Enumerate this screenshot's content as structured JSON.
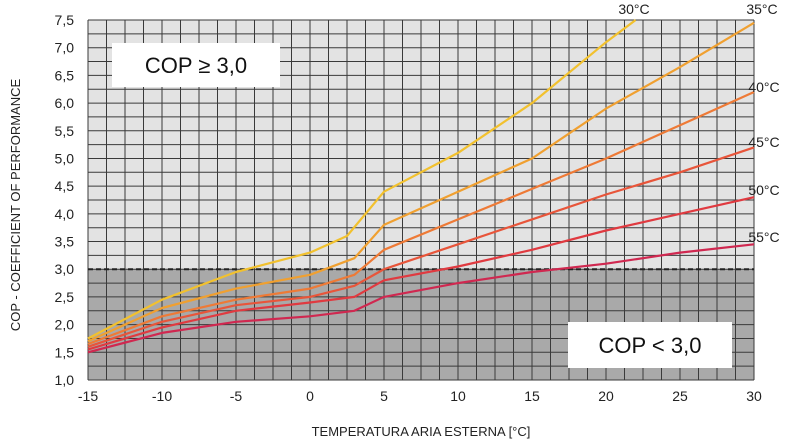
{
  "chart_data": {
    "type": "line",
    "xlabel": "TEMPERATURA ARIA ESTERNA [°C]",
    "ylabel": "COP - COEFFICIENT OF PERFORMANCE",
    "xlim": [
      -15,
      30
    ],
    "ylim": [
      1.0,
      7.5
    ],
    "x_ticks": [
      "-15",
      "-10",
      "-5",
      "0",
      "5",
      "10",
      "15",
      "20",
      "25",
      "30"
    ],
    "y_ticks": [
      "1,0",
      "1,5",
      "2,0",
      "2,5",
      "3,0",
      "3,5",
      "4,0",
      "4,5",
      "5,0",
      "5,5",
      "6,0",
      "6,5",
      "7,0",
      "7,5"
    ],
    "threshold": 3.0,
    "annotations": {
      "upper_region": "COP ≥  3,0",
      "lower_region": "COP <  3,0"
    },
    "series": [
      {
        "name": "30°C",
        "color": "#f2c12e",
        "x": [
          -15,
          -10,
          -5,
          0,
          2.5,
          5,
          10,
          15,
          20,
          22
        ],
        "y": [
          1.75,
          2.45,
          2.95,
          3.3,
          3.6,
          4.4,
          5.1,
          6.0,
          7.1,
          7.5
        ]
      },
      {
        "name": "35°C",
        "color": "#f0a030",
        "x": [
          -15,
          -10,
          -5,
          0,
          3,
          5,
          10,
          15,
          20,
          25,
          30
        ],
        "y": [
          1.7,
          2.3,
          2.65,
          2.9,
          3.2,
          3.8,
          4.4,
          5.0,
          5.9,
          6.65,
          7.45
        ]
      },
      {
        "name": "40°C",
        "color": "#ee7a36",
        "x": [
          -15,
          -10,
          -5,
          0,
          3,
          5,
          10,
          15,
          20,
          25,
          30
        ],
        "y": [
          1.65,
          2.15,
          2.45,
          2.65,
          2.9,
          3.35,
          3.9,
          4.45,
          5.0,
          5.6,
          6.2
        ]
      },
      {
        "name": "45°C",
        "color": "#e8553a",
        "x": [
          -15,
          -10,
          -5,
          0,
          3,
          5,
          10,
          15,
          20,
          25,
          30
        ],
        "y": [
          1.6,
          2.05,
          2.35,
          2.5,
          2.7,
          3.0,
          3.45,
          3.9,
          4.35,
          4.75,
          5.2
        ]
      },
      {
        "name": "50°C",
        "color": "#e03a40",
        "x": [
          -15,
          -10,
          -5,
          0,
          3,
          5,
          10,
          15,
          20,
          25,
          30
        ],
        "y": [
          1.55,
          1.95,
          2.25,
          2.4,
          2.5,
          2.8,
          3.05,
          3.35,
          3.7,
          4.0,
          4.3
        ]
      },
      {
        "name": "55°C",
        "color": "#d02850",
        "x": [
          -15,
          -10,
          -5,
          0,
          3,
          5,
          10,
          15,
          20,
          25,
          30
        ],
        "y": [
          1.5,
          1.85,
          2.05,
          2.15,
          2.25,
          2.5,
          2.75,
          2.95,
          3.1,
          3.3,
          3.45
        ]
      }
    ]
  }
}
